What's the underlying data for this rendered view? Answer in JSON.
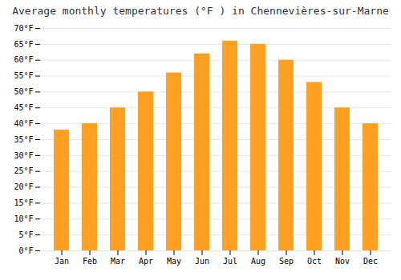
{
  "chart_data": {
    "type": "bar",
    "title": "Average monthly temperatures (°F ) in Chennevières-sur-Marne",
    "categories": [
      "Jan",
      "Feb",
      "Mar",
      "Apr",
      "May",
      "Jun",
      "Jul",
      "Aug",
      "Sep",
      "Oct",
      "Nov",
      "Dec"
    ],
    "values": [
      38,
      40,
      45,
      50,
      56,
      62,
      66,
      65,
      60,
      53,
      45,
      40
    ],
    "color": "#FFA020",
    "ylim": [
      0,
      70
    ],
    "yticks": [
      {
        "value": 0,
        "label": "0°F"
      },
      {
        "value": 5,
        "label": "5°F"
      },
      {
        "value": 10,
        "label": "10°F"
      },
      {
        "value": 15,
        "label": "15°F"
      },
      {
        "value": 20,
        "label": "20°F"
      },
      {
        "value": 25,
        "label": "25°F"
      },
      {
        "value": 30,
        "label": "30°F"
      },
      {
        "value": 35,
        "label": "35°F"
      },
      {
        "value": 40,
        "label": "40°F"
      },
      {
        "value": 45,
        "label": "45°F"
      },
      {
        "value": 50,
        "label": "50°F"
      },
      {
        "value": 55,
        "label": "55°F"
      },
      {
        "value": 60,
        "label": "60°F"
      },
      {
        "value": 65,
        "label": "65°F"
      },
      {
        "value": 70,
        "label": "70°F"
      }
    ],
    "grid": true
  }
}
